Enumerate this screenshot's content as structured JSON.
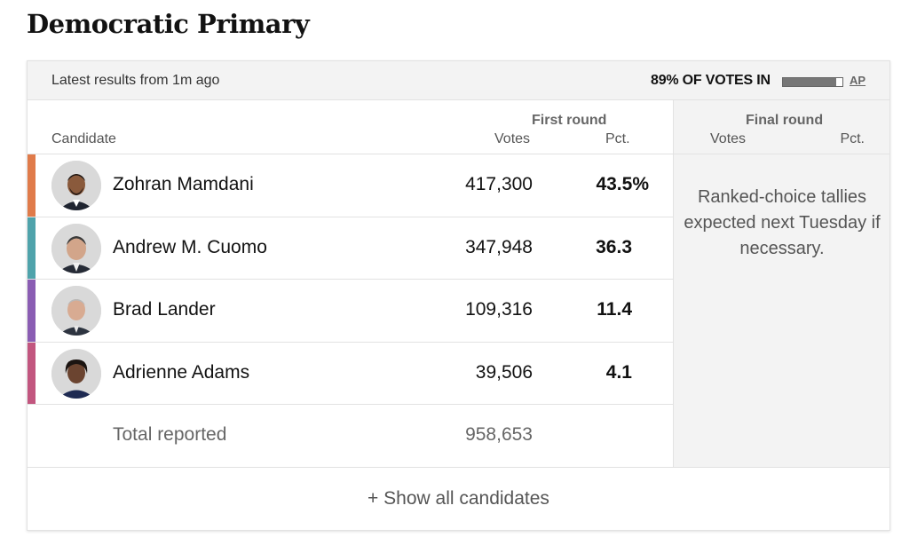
{
  "title": "Democratic Primary",
  "status": {
    "latest": "Latest results from 1m ago",
    "votes_in": "89% OF VOTES IN",
    "progress_fraction": 0.89,
    "source_link": "AP"
  },
  "columns": {
    "candidate": "Candidate",
    "first_round": "First round",
    "final_round": "Final round",
    "votes": "Votes",
    "pct": "Pct."
  },
  "candidates": [
    {
      "name": "Zohran Mamdani",
      "votes": "417,300",
      "pct": "43.5%",
      "color": "#e07b4a"
    },
    {
      "name": "Andrew M. Cuomo",
      "votes": "347,948",
      "pct": "36.3",
      "color": "#4fa3ab"
    },
    {
      "name": "Brad Lander",
      "votes": "109,316",
      "pct": "11.4",
      "color": "#8a5db3"
    },
    {
      "name": "Adrienne Adams",
      "votes": "39,506",
      "pct": "4.1",
      "color": "#c2567f"
    }
  ],
  "total": {
    "label": "Total reported",
    "votes": "958,653"
  },
  "final_round_note": "Ranked-choice tallies expected next Tuesday if necessary.",
  "show_all": "+ Show all candidates"
}
